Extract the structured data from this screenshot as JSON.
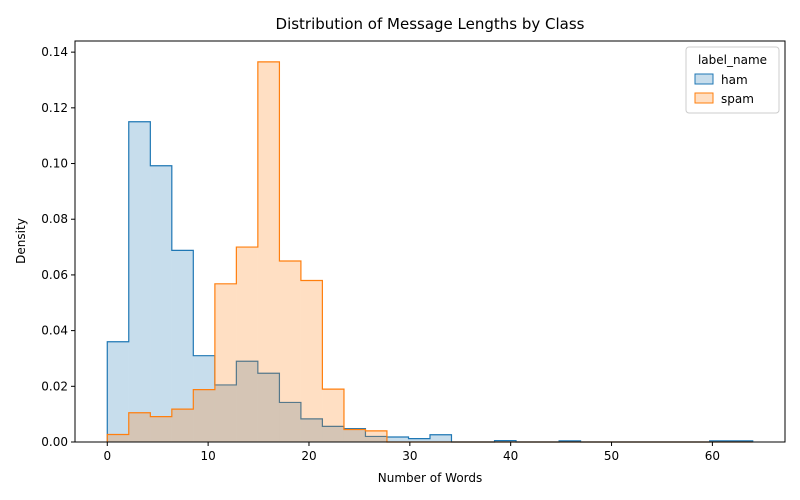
{
  "chart_data": {
    "type": "histogram",
    "title": "Distribution of Message Lengths by Class",
    "xlabel": "Number of Words",
    "ylabel": "Density",
    "xlim": [
      -3.2,
      67.2
    ],
    "ylim": [
      0,
      0.144
    ],
    "x_ticks": [
      0,
      10,
      20,
      30,
      40,
      50,
      60
    ],
    "x_tick_labels": [
      "0",
      "10",
      "20",
      "30",
      "40",
      "50",
      "60"
    ],
    "y_ticks": [
      0,
      0.02,
      0.04,
      0.06,
      0.08,
      0.1,
      0.12,
      0.14
    ],
    "y_tick_labels": [
      "0.00",
      "0.02",
      "0.04",
      "0.06",
      "0.08",
      "0.10",
      "0.12",
      "0.14"
    ],
    "bin_edges": [
      0,
      2.13,
      4.27,
      6.4,
      8.53,
      10.67,
      12.8,
      14.93,
      17.07,
      19.2,
      21.33,
      23.47,
      25.6,
      27.73,
      29.87,
      32.0,
      34.13,
      36.27,
      38.4,
      40.53,
      42.67,
      44.8,
      46.93,
      49.07,
      51.2,
      53.33,
      55.47,
      57.6,
      59.73,
      61.87,
      64.0
    ],
    "legend": {
      "title": "label_name",
      "placement": "top-right"
    },
    "grid": false,
    "series": [
      {
        "name": "ham",
        "edge_color": "#1f77b4",
        "fill_color": "#1f77b4",
        "fill_opacity": 0.25,
        "density": [
          0.036,
          0.115,
          0.0992,
          0.0688,
          0.031,
          0.0205,
          0.029,
          0.0247,
          0.0142,
          0.0083,
          0.0056,
          0.0048,
          0.002,
          0.0018,
          0.0012,
          0.0026,
          0.0,
          0.0,
          0.0005,
          0.0,
          0.0,
          0.0004,
          0.0,
          0.0,
          0.0,
          0.0,
          0.0,
          0.0,
          0.0004,
          0.0004
        ]
      },
      {
        "name": "spam",
        "edge_color": "#ff7f0e",
        "fill_color": "#ff7f0e",
        "fill_opacity": 0.25,
        "density": [
          0.0027,
          0.0105,
          0.0091,
          0.0118,
          0.0188,
          0.0568,
          0.07,
          0.1365,
          0.065,
          0.058,
          0.019,
          0.0045,
          0.004,
          0.0,
          0.0,
          0.0,
          0.0,
          0.0,
          0.0,
          0.0,
          0.0,
          0.0,
          0.0,
          0.0,
          0.0,
          0.0,
          0.0,
          0.0,
          0.0,
          0.0
        ]
      }
    ]
  }
}
